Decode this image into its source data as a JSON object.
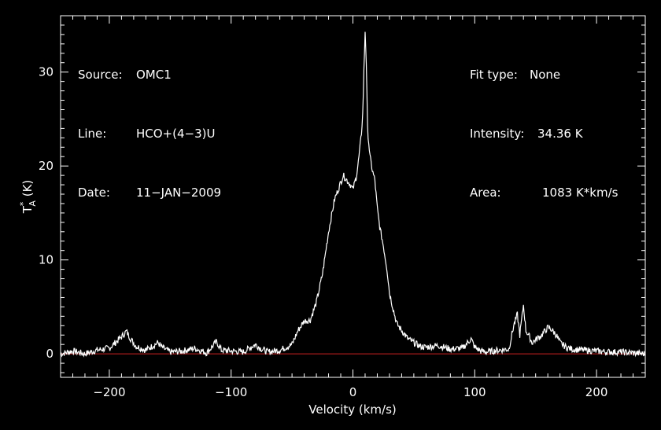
{
  "chart_data": {
    "type": "line",
    "xlabel": "Velocity (km/s)",
    "ylabel": "T*A (K)",
    "xlim": [
      -240,
      240
    ],
    "ylim": [
      -2.5,
      36
    ],
    "xticks": [
      -200,
      -100,
      0,
      100,
      200
    ],
    "yticks": [
      0,
      10,
      20,
      30
    ],
    "grid": false,
    "baseline": 0,
    "colors": {
      "background": "#000000",
      "axes": "#ffffff",
      "spectrum": "#ffffff",
      "baseline": "#cc2222"
    },
    "series": [
      {
        "x": [
          -240,
          -230,
          -220,
          -210,
          -200,
          -195,
          -190,
          -186,
          -182,
          -178,
          -170,
          -160,
          -157,
          -150,
          -140,
          -130,
          -120,
          -112,
          -108,
          -100,
          -90,
          -80,
          -76,
          -70,
          -60,
          -50,
          -45,
          -40,
          -35,
          -30,
          -25,
          -20,
          -15,
          -12,
          -8,
          -5,
          -2,
          0,
          3,
          5,
          7,
          8,
          9,
          10,
          11,
          12,
          14,
          16,
          18,
          20,
          22,
          25,
          28,
          30,
          33,
          36,
          40,
          45,
          50,
          55,
          60,
          70,
          80,
          90,
          97,
          100,
          105,
          110,
          120,
          128,
          132,
          135,
          137,
          140,
          142,
          145,
          147,
          150,
          155,
          160,
          163,
          167,
          170,
          175,
          180,
          190,
          200,
          210,
          220,
          230,
          240
        ],
        "values": [
          0.0,
          0.3,
          0.0,
          0.4,
          0.6,
          1.2,
          1.8,
          2.4,
          1.5,
          0.8,
          0.4,
          1.2,
          0.7,
          0.2,
          0.3,
          0.6,
          0.1,
          1.3,
          0.4,
          0.3,
          0.2,
          1.0,
          0.6,
          0.2,
          0.4,
          1.0,
          2.5,
          3.5,
          3.6,
          5.5,
          8.5,
          13.0,
          16.5,
          17.5,
          19.0,
          18.5,
          18.0,
          17.5,
          19.0,
          21.0,
          23.5,
          25.5,
          30.0,
          34.36,
          31.0,
          24.0,
          21.0,
          19.5,
          18.5,
          15.5,
          13.5,
          11.5,
          9.0,
          6.5,
          4.8,
          3.2,
          2.5,
          1.6,
          1.2,
          0.8,
          0.7,
          0.9,
          0.5,
          0.6,
          1.6,
          0.7,
          0.3,
          0.2,
          0.4,
          0.5,
          3.0,
          4.2,
          2.0,
          5.2,
          2.5,
          1.8,
          1.2,
          1.5,
          2.0,
          2.8,
          2.6,
          2.0,
          1.2,
          0.7,
          0.5,
          0.4,
          0.3,
          0.2,
          0.2,
          0.1,
          0.0
        ]
      }
    ]
  },
  "info_left": {
    "source_label": "Source:",
    "source_value": "OMC1",
    "line_label": "Line:",
    "line_value": "HCO+(4−3)U",
    "date_label": "Date:",
    "date_value": "11−JAN−2009"
  },
  "info_right": {
    "fit_label": "Fit type:",
    "fit_value": "None",
    "intensity_label": "Intensity:",
    "intensity_value": "34.36 K",
    "area_label": "Area:",
    "area_value": "1083 K*km/s"
  },
  "axis_labels": {
    "x": "Velocity (km/s)",
    "y_main": "T",
    "y_sup": "*",
    "y_sub": "A",
    "y_unit": " (K)"
  }
}
